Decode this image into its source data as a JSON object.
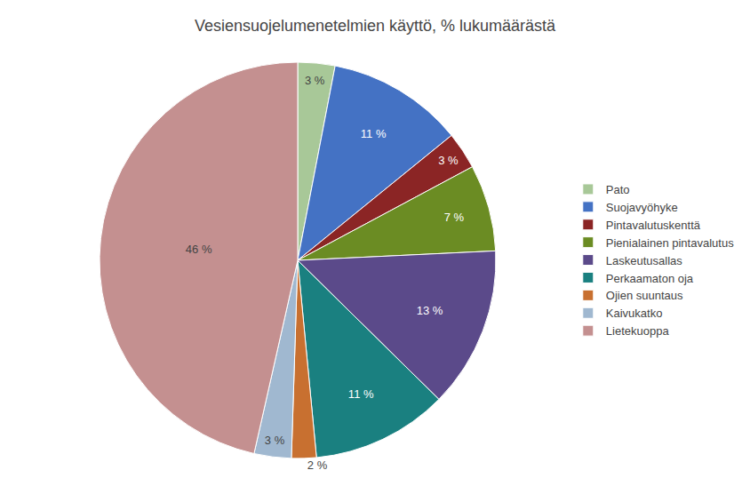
{
  "chart_data": {
    "type": "pie",
    "title": "Vesiensuojelumenetelmien käyttö, % lukumäärästä",
    "categories": [
      "Pato",
      "Suojavyöhyke",
      "Pintavalutuskenttä",
      "Pienialainen pintavalutus",
      "Laskeutusallas",
      "Perkaamaton oja",
      "Ojien suuntaus",
      "Kaivukatko",
      "Lietekuoppa"
    ],
    "values": [
      3,
      11,
      3,
      7,
      13,
      11,
      2,
      3,
      46
    ],
    "value_labels": [
      "3 %",
      "11 %",
      "3 %",
      "7 %",
      "13 %",
      "11 %",
      "2 %",
      "3 %",
      "46 %"
    ],
    "colors": [
      "#A8C898",
      "#4472C4",
      "#8B2525",
      "#6B8C23",
      "#5B4A8A",
      "#1A8080",
      "#C87030",
      "#A0B8D0",
      "#C49090"
    ],
    "data_labels": true,
    "legend": "right"
  }
}
